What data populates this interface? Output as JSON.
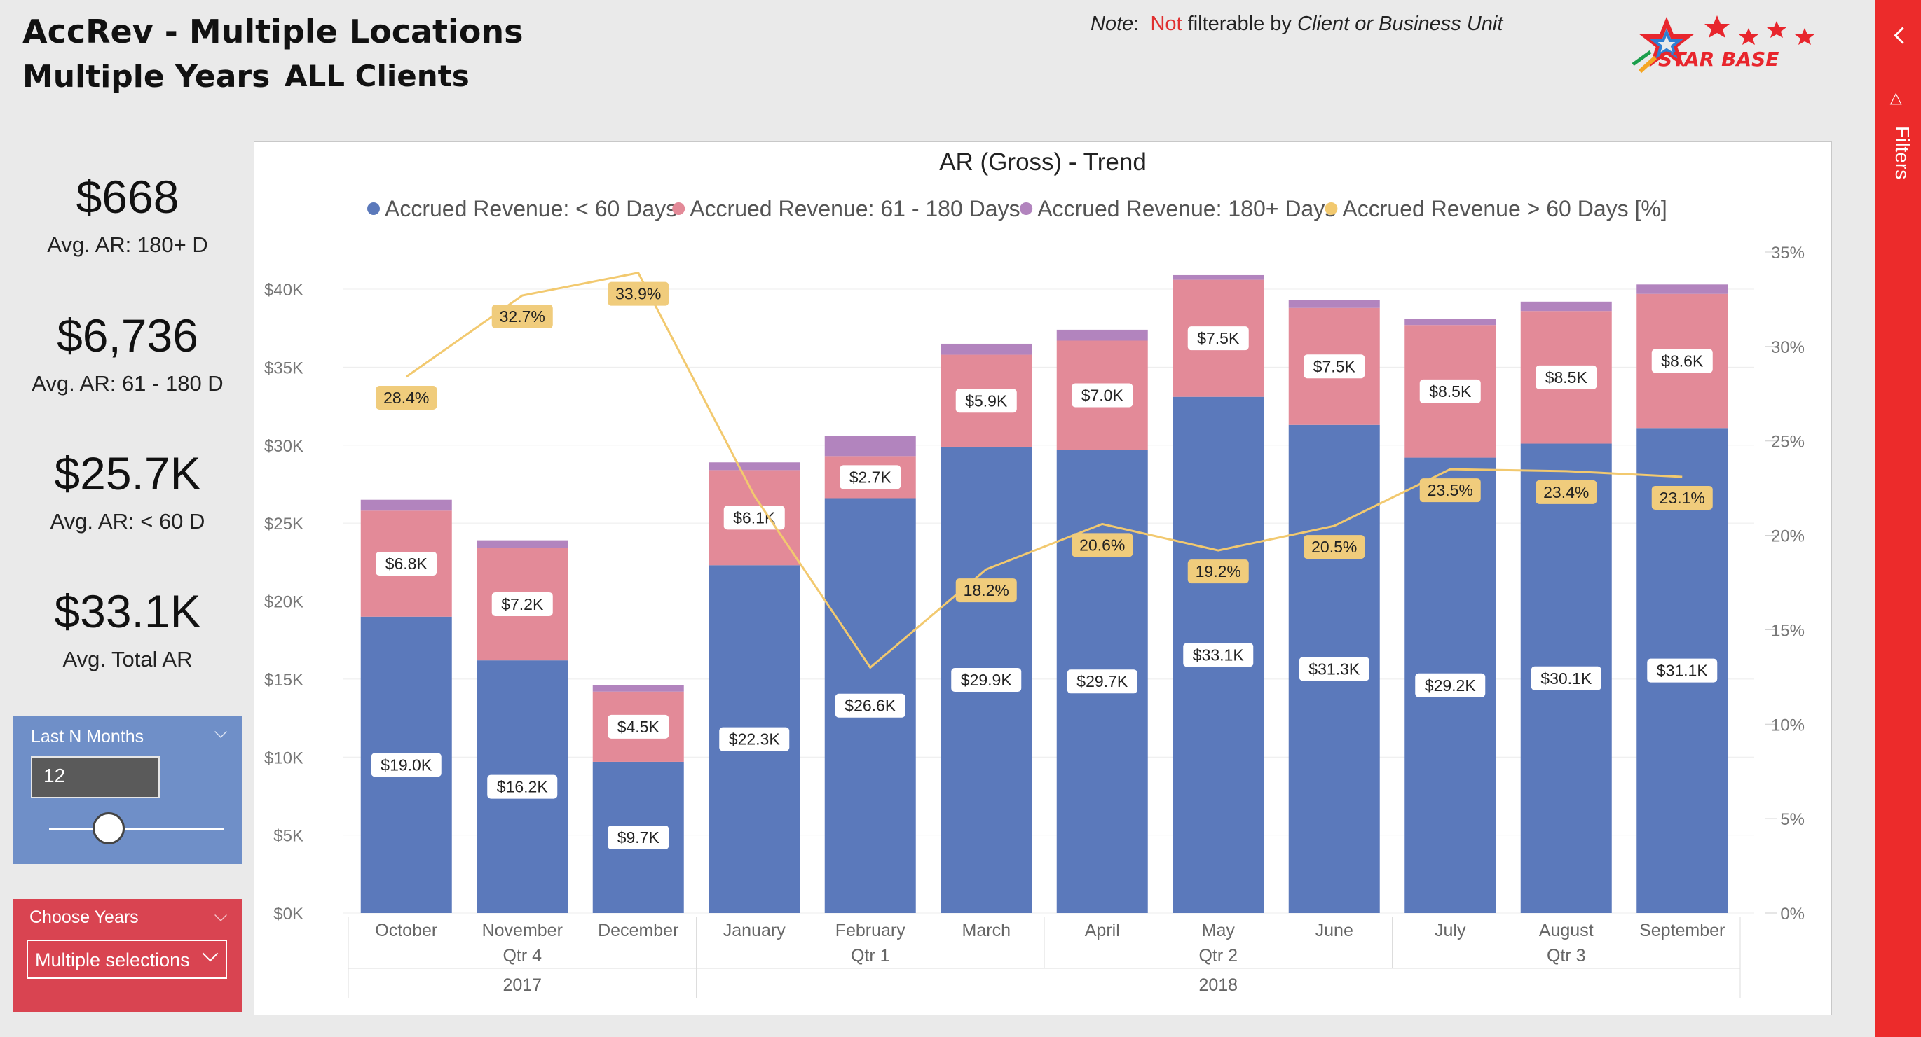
{
  "header": {
    "title_line1": "AccRev - Multiple Locations",
    "title_line2": "Multiple Years",
    "title_clients": "ALL Clients",
    "note_label": "Note",
    "note_not": "Not",
    "note_filterable": "filterable by",
    "note_client": "Client",
    "note_or": "or",
    "note_bu": "Business Unit"
  },
  "logo": {
    "text": "STAR BASE",
    "colors": [
      "#e8262d",
      "#f5a623",
      "#2e7fd3",
      "#1a9e4b"
    ]
  },
  "cards": [
    {
      "value": "$668",
      "label": "Avg. AR: 180+ D"
    },
    {
      "value": "$6,736",
      "label": "Avg. AR: 61 - 180 D"
    },
    {
      "value": "$25.7K",
      "label": "Avg. AR: < 60 D"
    },
    {
      "value": "$33.1K",
      "label": "Avg. Total AR"
    }
  ],
  "slicer_months": {
    "title": "Last N Months",
    "value": "12",
    "slider_fraction": 0.34
  },
  "slicer_years": {
    "title": "Choose Years",
    "value": "Multiple selections"
  },
  "filters_pane": {
    "label": "Filters"
  },
  "colors": {
    "lt60": "#5b79bb",
    "d61_180": "#e38a98",
    "d180": "#b284be",
    "pct": "#f2c96f",
    "pct_label": "#f0cc7c",
    "accent_red": "#ec2b2b"
  },
  "chart_data": {
    "type": "bar",
    "stacked": true,
    "title": "AR (Gross) - Trend",
    "legend_position": "top",
    "categories": [
      "October",
      "November",
      "December",
      "January",
      "February",
      "March",
      "April",
      "May",
      "June",
      "July",
      "August",
      "September"
    ],
    "quarter_labels": [
      {
        "label": "Qtr 4",
        "under": "November"
      },
      {
        "label": "Qtr 1",
        "under": "February"
      },
      {
        "label": "Qtr 2",
        "under": "May"
      },
      {
        "label": "Qtr 3",
        "under": "August"
      }
    ],
    "year_labels": [
      {
        "label": "2017",
        "under": "November"
      },
      {
        "label": "2018",
        "under": "May"
      }
    ],
    "ylim": [
      0,
      40000
    ],
    "y_ticks": [
      "$0K",
      "$5K",
      "$10K",
      "$15K",
      "$20K",
      "$25K",
      "$30K",
      "$35K",
      "$40K"
    ],
    "y2lim": [
      0,
      35
    ],
    "y2_ticks": [
      "0%",
      "5%",
      "10%",
      "15%",
      "20%",
      "25%",
      "30%",
      "35%"
    ],
    "grid": true,
    "series": [
      {
        "name": "Accrued Revenue: < 60 Days",
        "axis": "left",
        "values": [
          19000,
          16200,
          9700,
          22300,
          26600,
          29900,
          29700,
          33100,
          31300,
          29200,
          30100,
          31100
        ],
        "labels": [
          "$19.0K",
          "$16.2K",
          "$9.7K",
          "$22.3K",
          "$26.6K",
          "$29.9K",
          "$29.7K",
          "$33.1K",
          "$31.3K",
          "$29.2K",
          "$30.1K",
          "$31.1K"
        ]
      },
      {
        "name": "Accrued Revenue: 61 - 180 Days",
        "axis": "left",
        "values": [
          6800,
          7200,
          4500,
          6100,
          2700,
          5900,
          7000,
          7500,
          7500,
          8500,
          8500,
          8600
        ],
        "labels": [
          "$6.8K",
          "$7.2K",
          "$4.5K",
          "$6.1K",
          "$2.7K",
          "$5.9K",
          "$7.0K",
          "$7.5K",
          "$7.5K",
          "$8.5K",
          "$8.5K",
          "$8.6K"
        ]
      },
      {
        "name": "Accrued Revenue: 180+ Days",
        "axis": "left",
        "values": [
          700,
          500,
          400,
          500,
          1300,
          700,
          700,
          300,
          500,
          400,
          600,
          600
        ]
      },
      {
        "name": "Accrued Revenue > 60 Days [%]",
        "axis": "right",
        "type": "line",
        "values": [
          28.4,
          32.7,
          33.9,
          22.1,
          13.0,
          18.2,
          20.6,
          19.2,
          20.5,
          23.5,
          23.4,
          23.1
        ],
        "labels": [
          "28.4%",
          "32.7%",
          "33.9%",
          "",
          "",
          "18.2%",
          "20.6%",
          "19.2%",
          "20.5%",
          "23.5%",
          "23.4%",
          "23.1%"
        ]
      }
    ]
  }
}
